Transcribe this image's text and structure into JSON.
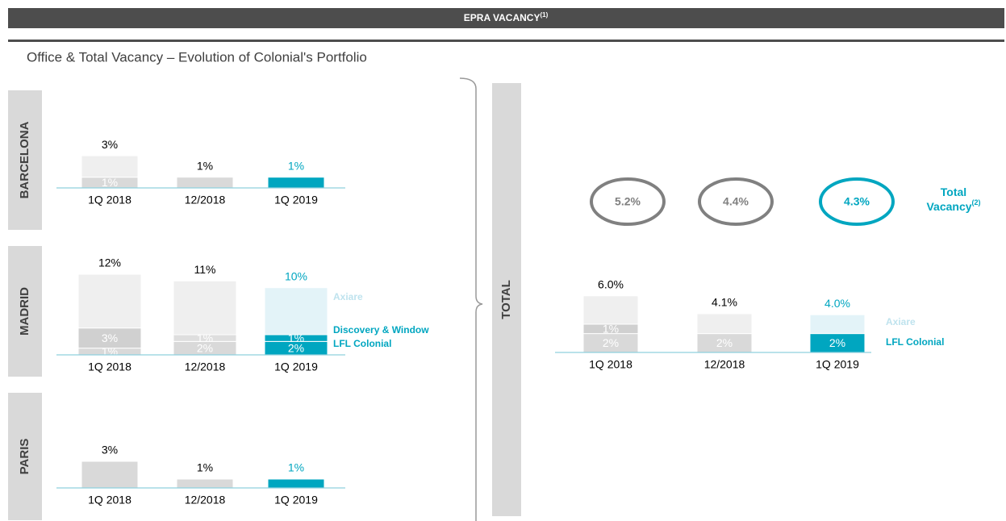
{
  "header": {
    "title": "EPRA VACANCY",
    "title_note": "(1)",
    "subtitle": "Office & Total Vacancy – Evolution of Colonial's Portfolio"
  },
  "chart_data": [
    {
      "type": "bar",
      "stacked": true,
      "label": "BARCELONA",
      "categories": [
        "1Q 2018",
        "12/2018",
        "1Q 2019"
      ],
      "series": [
        {
          "values": [
            1,
            1,
            1
          ],
          "value_labels": [
            "1%",
            null,
            null
          ],
          "colors": [
            "#d9d9d9",
            "#d9d9d9",
            "#00a6c0"
          ]
        },
        {
          "values": [
            2,
            null,
            null
          ],
          "value_labels": [
            null,
            null,
            null
          ],
          "colors": [
            "#efefef",
            "#efefef",
            "#e3f3f8"
          ]
        }
      ],
      "totals": {
        "values": [
          3,
          1,
          1
        ],
        "value_labels": [
          "3%",
          "1%",
          "1%"
        ],
        "colors": [
          "#000000",
          "#000000",
          "#00a6c0"
        ]
      }
    },
    {
      "type": "bar",
      "stacked": true,
      "label": "MADRID",
      "categories": [
        "1Q 2018",
        "12/2018",
        "1Q 2019"
      ],
      "series": [
        {
          "name": "LFL Colonial",
          "color": "#00a6c0",
          "values": [
            1,
            2,
            2
          ],
          "value_labels": [
            "1%",
            "2%",
            "2%"
          ],
          "colors": [
            "#d9d9d9",
            "#d9d9d9",
            "#00a6c0"
          ]
        },
        {
          "name": "Discovery & Window",
          "color": "#00a6c0",
          "values": [
            3,
            1,
            1
          ],
          "value_labels": [
            "3%",
            "1%",
            "1%"
          ],
          "colors": [
            "#d0d0d0",
            "#dedede",
            "#00a6c0"
          ]
        },
        {
          "name": "Axiare",
          "color": "#bfe3ee",
          "values": [
            8,
            8,
            7
          ],
          "value_labels": [
            null,
            null,
            null
          ],
          "colors": [
            "#efefef",
            "#efefef",
            "#e3f3f8"
          ]
        }
      ],
      "totals": {
        "values": [
          12,
          11,
          10
        ],
        "value_labels": [
          "12%",
          "11%",
          "10%"
        ],
        "colors": [
          "#000000",
          "#000000",
          "#00a6c0"
        ]
      }
    },
    {
      "type": "bar",
      "stacked": true,
      "label": "PARIS",
      "categories": [
        "1Q 2018",
        "12/2018",
        "1Q 2019"
      ],
      "series": [
        {
          "values": [
            3,
            1,
            1
          ],
          "value_labels": [
            null,
            null,
            null
          ],
          "colors": [
            "#d9d9d9",
            "#d9d9d9",
            "#00a6c0"
          ]
        }
      ],
      "totals": {
        "values": [
          3,
          1,
          1
        ],
        "value_labels": [
          "3%",
          "1%",
          "1%"
        ],
        "colors": [
          "#000000",
          "#000000",
          "#00a6c0"
        ]
      }
    },
    {
      "type": "bar",
      "stacked": true,
      "label": "TOTAL",
      "categories": [
        "1Q 2018",
        "12/2018",
        "1Q 2019"
      ],
      "series": [
        {
          "name": "LFL Colonial",
          "color": "#00a6c0",
          "values": [
            2,
            2,
            2
          ],
          "value_labels": [
            "2%",
            "2%",
            "2%"
          ],
          "colors": [
            "#d9d9d9",
            "#d9d9d9",
            "#00a6c0"
          ]
        },
        {
          "values": [
            1,
            null,
            null
          ],
          "value_labels": [
            "1%",
            null,
            null
          ],
          "colors": [
            "#d0d0d0",
            "#d9d9d9",
            "#00a6c0"
          ]
        },
        {
          "name": "Axiare",
          "color": "#bfe3ee",
          "values": [
            3,
            2.1,
            2
          ],
          "value_labels": [
            null,
            null,
            null
          ],
          "colors": [
            "#efefef",
            "#efefef",
            "#e3f3f8"
          ]
        }
      ],
      "totals": {
        "values": [
          6.0,
          4.1,
          4.0
        ],
        "value_labels": [
          "6.0%",
          "4.1%",
          "4.0%"
        ],
        "colors": [
          "#000000",
          "#000000",
          "#00a6c0"
        ]
      },
      "circles": {
        "values": [
          5.2,
          4.4,
          4.3
        ],
        "value_labels": [
          "5.2%",
          "4.4%",
          "4.3%"
        ],
        "colors": [
          "#808080",
          "#808080",
          "#00a6c0"
        ],
        "title_lines": [
          "Total",
          "Vacancy"
        ],
        "title_note": "(2)"
      }
    }
  ]
}
